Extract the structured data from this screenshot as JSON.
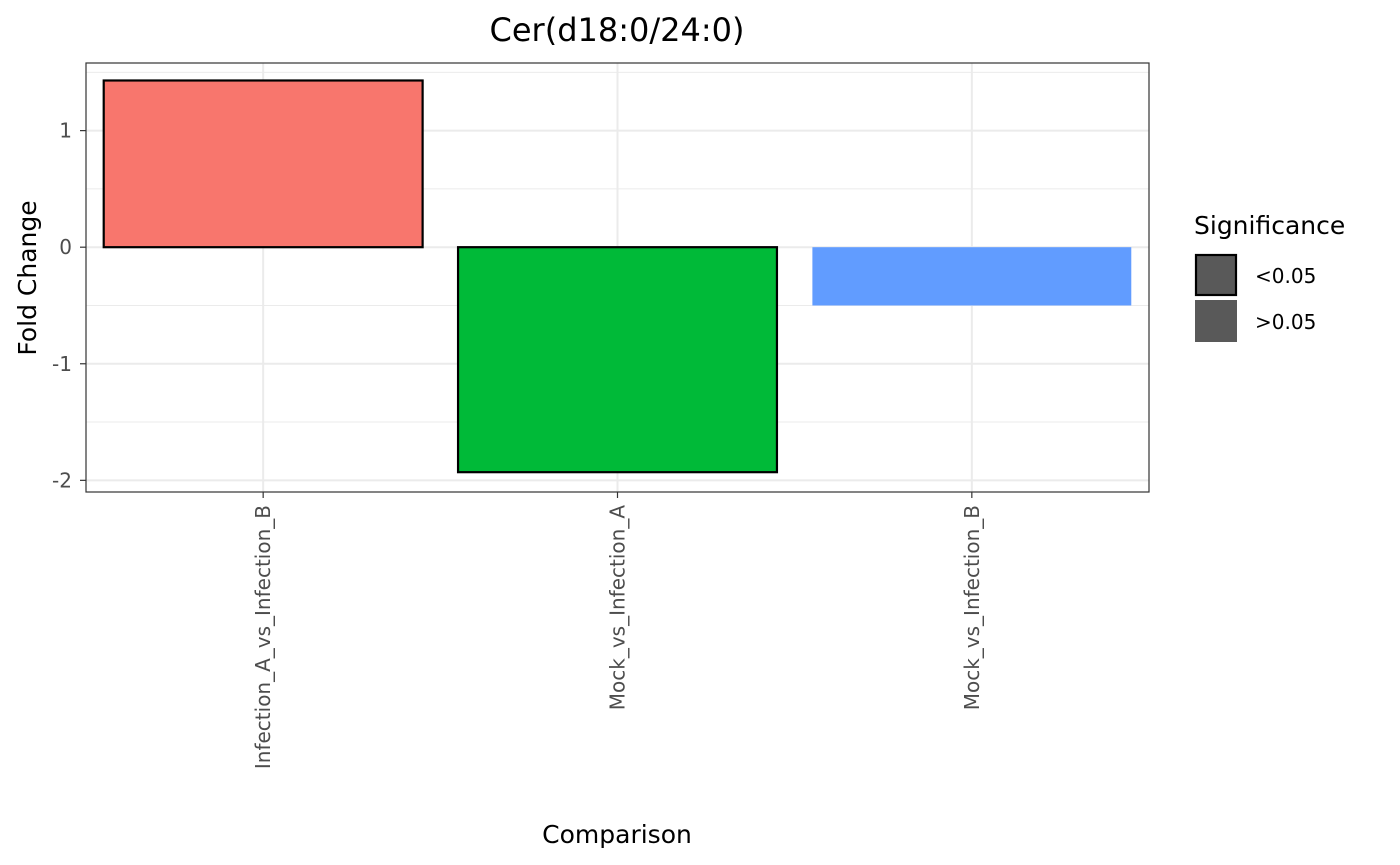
{
  "chart_data": {
    "type": "bar",
    "title": "Cer(d18:0/24:0)",
    "xlabel": "Comparison",
    "ylabel": "Fold Change",
    "categories": [
      "Infection_A_vs_Infection_B",
      "Mock_vs_Infection_A",
      "Mock_vs_Infection_B"
    ],
    "values": [
      1.43,
      -1.93,
      -0.5
    ],
    "colors": [
      "#F8766D",
      "#00BA38",
      "#619CFF"
    ],
    "significance": [
      "<0.05",
      "<0.05",
      ">0.05"
    ],
    "ylim": [
      -2.1,
      1.58
    ],
    "yticks": [
      -2,
      -1,
      0,
      1
    ],
    "ytick_labels": [
      "-2",
      "-1",
      "0",
      "1"
    ],
    "grid": true,
    "legend": {
      "title": "Significance",
      "position": "right",
      "entries": [
        {
          "label": "<0.05",
          "outlined": true,
          "fill": "#595959"
        },
        {
          "label": ">0.05",
          "outlined": false,
          "fill": "#595959"
        }
      ]
    }
  }
}
